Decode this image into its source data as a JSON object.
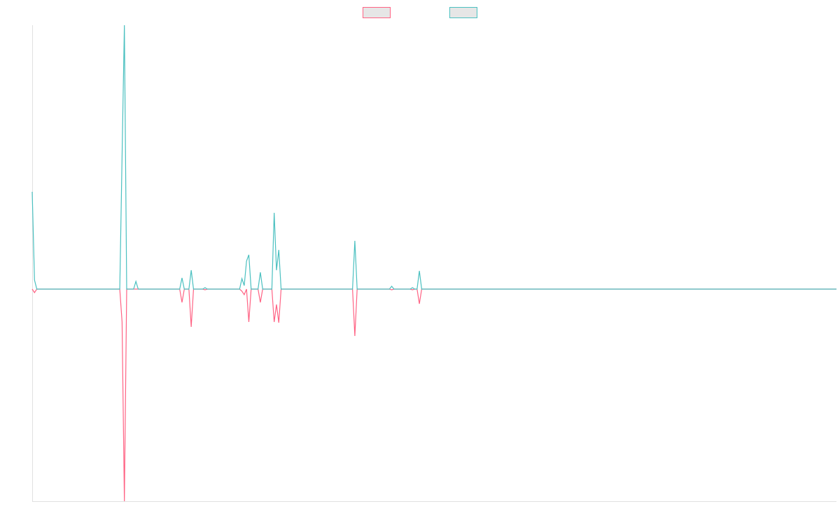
{
  "chart_data": {
    "type": "line",
    "x": [
      0,
      1,
      2,
      38,
      39,
      40,
      41,
      44,
      45,
      46,
      64,
      65,
      66,
      68,
      69,
      70,
      74,
      75,
      76,
      90,
      91,
      92,
      93,
      94,
      95,
      98,
      99,
      100,
      104,
      105,
      106,
      107,
      108,
      139,
      140,
      141,
      155,
      156,
      157,
      164,
      165,
      166,
      167,
      168,
      169,
      349
    ],
    "series": [
      {
        "color": "#ff6384",
        "values": [
          0,
          -5,
          0,
          0,
          -47,
          -303,
          0,
          0,
          0,
          0,
          0,
          -19,
          0,
          0,
          -54,
          0,
          0,
          -1,
          0,
          0,
          -3,
          -8,
          0,
          -47,
          0,
          0,
          -19,
          0,
          0,
          -47,
          -22,
          -48,
          0,
          0,
          -67,
          0,
          0,
          -1,
          0,
          0,
          -1,
          0,
          0,
          -21,
          0,
          0
        ]
      },
      {
        "color": "#4bc0c0",
        "values": [
          139,
          13,
          0,
          0,
          190,
          377,
          0,
          0,
          11,
          0,
          0,
          16,
          0,
          0,
          27,
          0,
          0,
          2,
          0,
          0,
          15,
          5,
          40,
          49,
          0,
          0,
          24,
          0,
          0,
          109,
          27,
          56,
          0,
          0,
          69,
          0,
          0,
          4,
          0,
          0,
          2,
          0,
          0,
          26,
          0,
          0
        ]
      }
    ],
    "xlim": [
      0,
      349
    ],
    "ylim": [
      -303,
      377
    ],
    "legend": "top"
  }
}
